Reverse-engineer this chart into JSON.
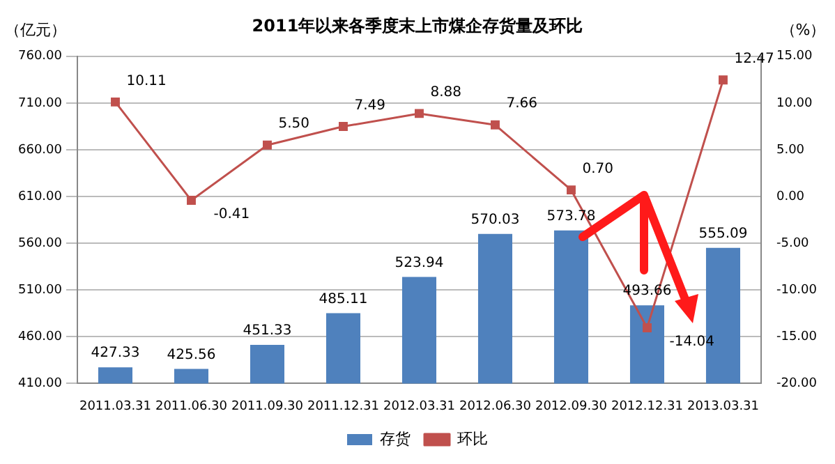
{
  "chart_data": {
    "type": "bar",
    "title": "2011年以来各季度末上市煤企存货量及环比",
    "ylabel": "（亿元）",
    "y2label": "（%）",
    "categories": [
      "2011.03.31",
      "2011.06.30",
      "2011.09.30",
      "2011.12.31",
      "2012.03.31",
      "2012.06.30",
      "2012.09.30",
      "2012.12.31",
      "2013.03.31"
    ],
    "series": [
      {
        "name": "存货",
        "color": "#4f81bd",
        "values": [
          427.33,
          425.56,
          451.33,
          485.11,
          523.94,
          570.03,
          573.78,
          493.66,
          555.09
        ],
        "value_labels": [
          "427.33",
          "425.56",
          "451.33",
          "485.11",
          "523.94",
          "570.03",
          "573.78",
          "493.66",
          "555.09"
        ]
      },
      {
        "name": "环比",
        "type": "line",
        "axis": "y2",
        "color": "#c0504d",
        "values": [
          10.11,
          -0.41,
          5.5,
          7.49,
          8.88,
          7.66,
          0.7,
          -14.04,
          12.47
        ],
        "value_labels": [
          "10.11",
          "-0.41",
          "5.50",
          "7.49",
          "8.88",
          "7.66",
          "0.70",
          "-14.04",
          "12.47"
        ]
      }
    ],
    "ylim": [
      410,
      760
    ],
    "yticks": [
      {
        "value": 410,
        "label": "410.00"
      },
      {
        "value": 460,
        "label": "460.00"
      },
      {
        "value": 510,
        "label": "510.00"
      },
      {
        "value": 560,
        "label": "560.00"
      },
      {
        "value": 610,
        "label": "610.00"
      },
      {
        "value": 660,
        "label": "660.00"
      },
      {
        "value": 710,
        "label": "710.00"
      },
      {
        "value": 760,
        "label": "760.00"
      }
    ],
    "y2lim": [
      -20,
      15
    ],
    "y2ticks": [
      {
        "value": -20,
        "label": "-20.00"
      },
      {
        "value": -15,
        "label": "-15.00"
      },
      {
        "value": -10,
        "label": "-10.00"
      },
      {
        "value": -5,
        "label": "-5.00"
      },
      {
        "value": 0,
        "label": "0.00"
      },
      {
        "value": 5,
        "label": "5.00"
      },
      {
        "value": 10,
        "label": "10.00"
      },
      {
        "value": 15,
        "label": "15.00"
      }
    ],
    "grid": "y",
    "legend": "bottom",
    "marker": "square",
    "line_style": "solid"
  }
}
